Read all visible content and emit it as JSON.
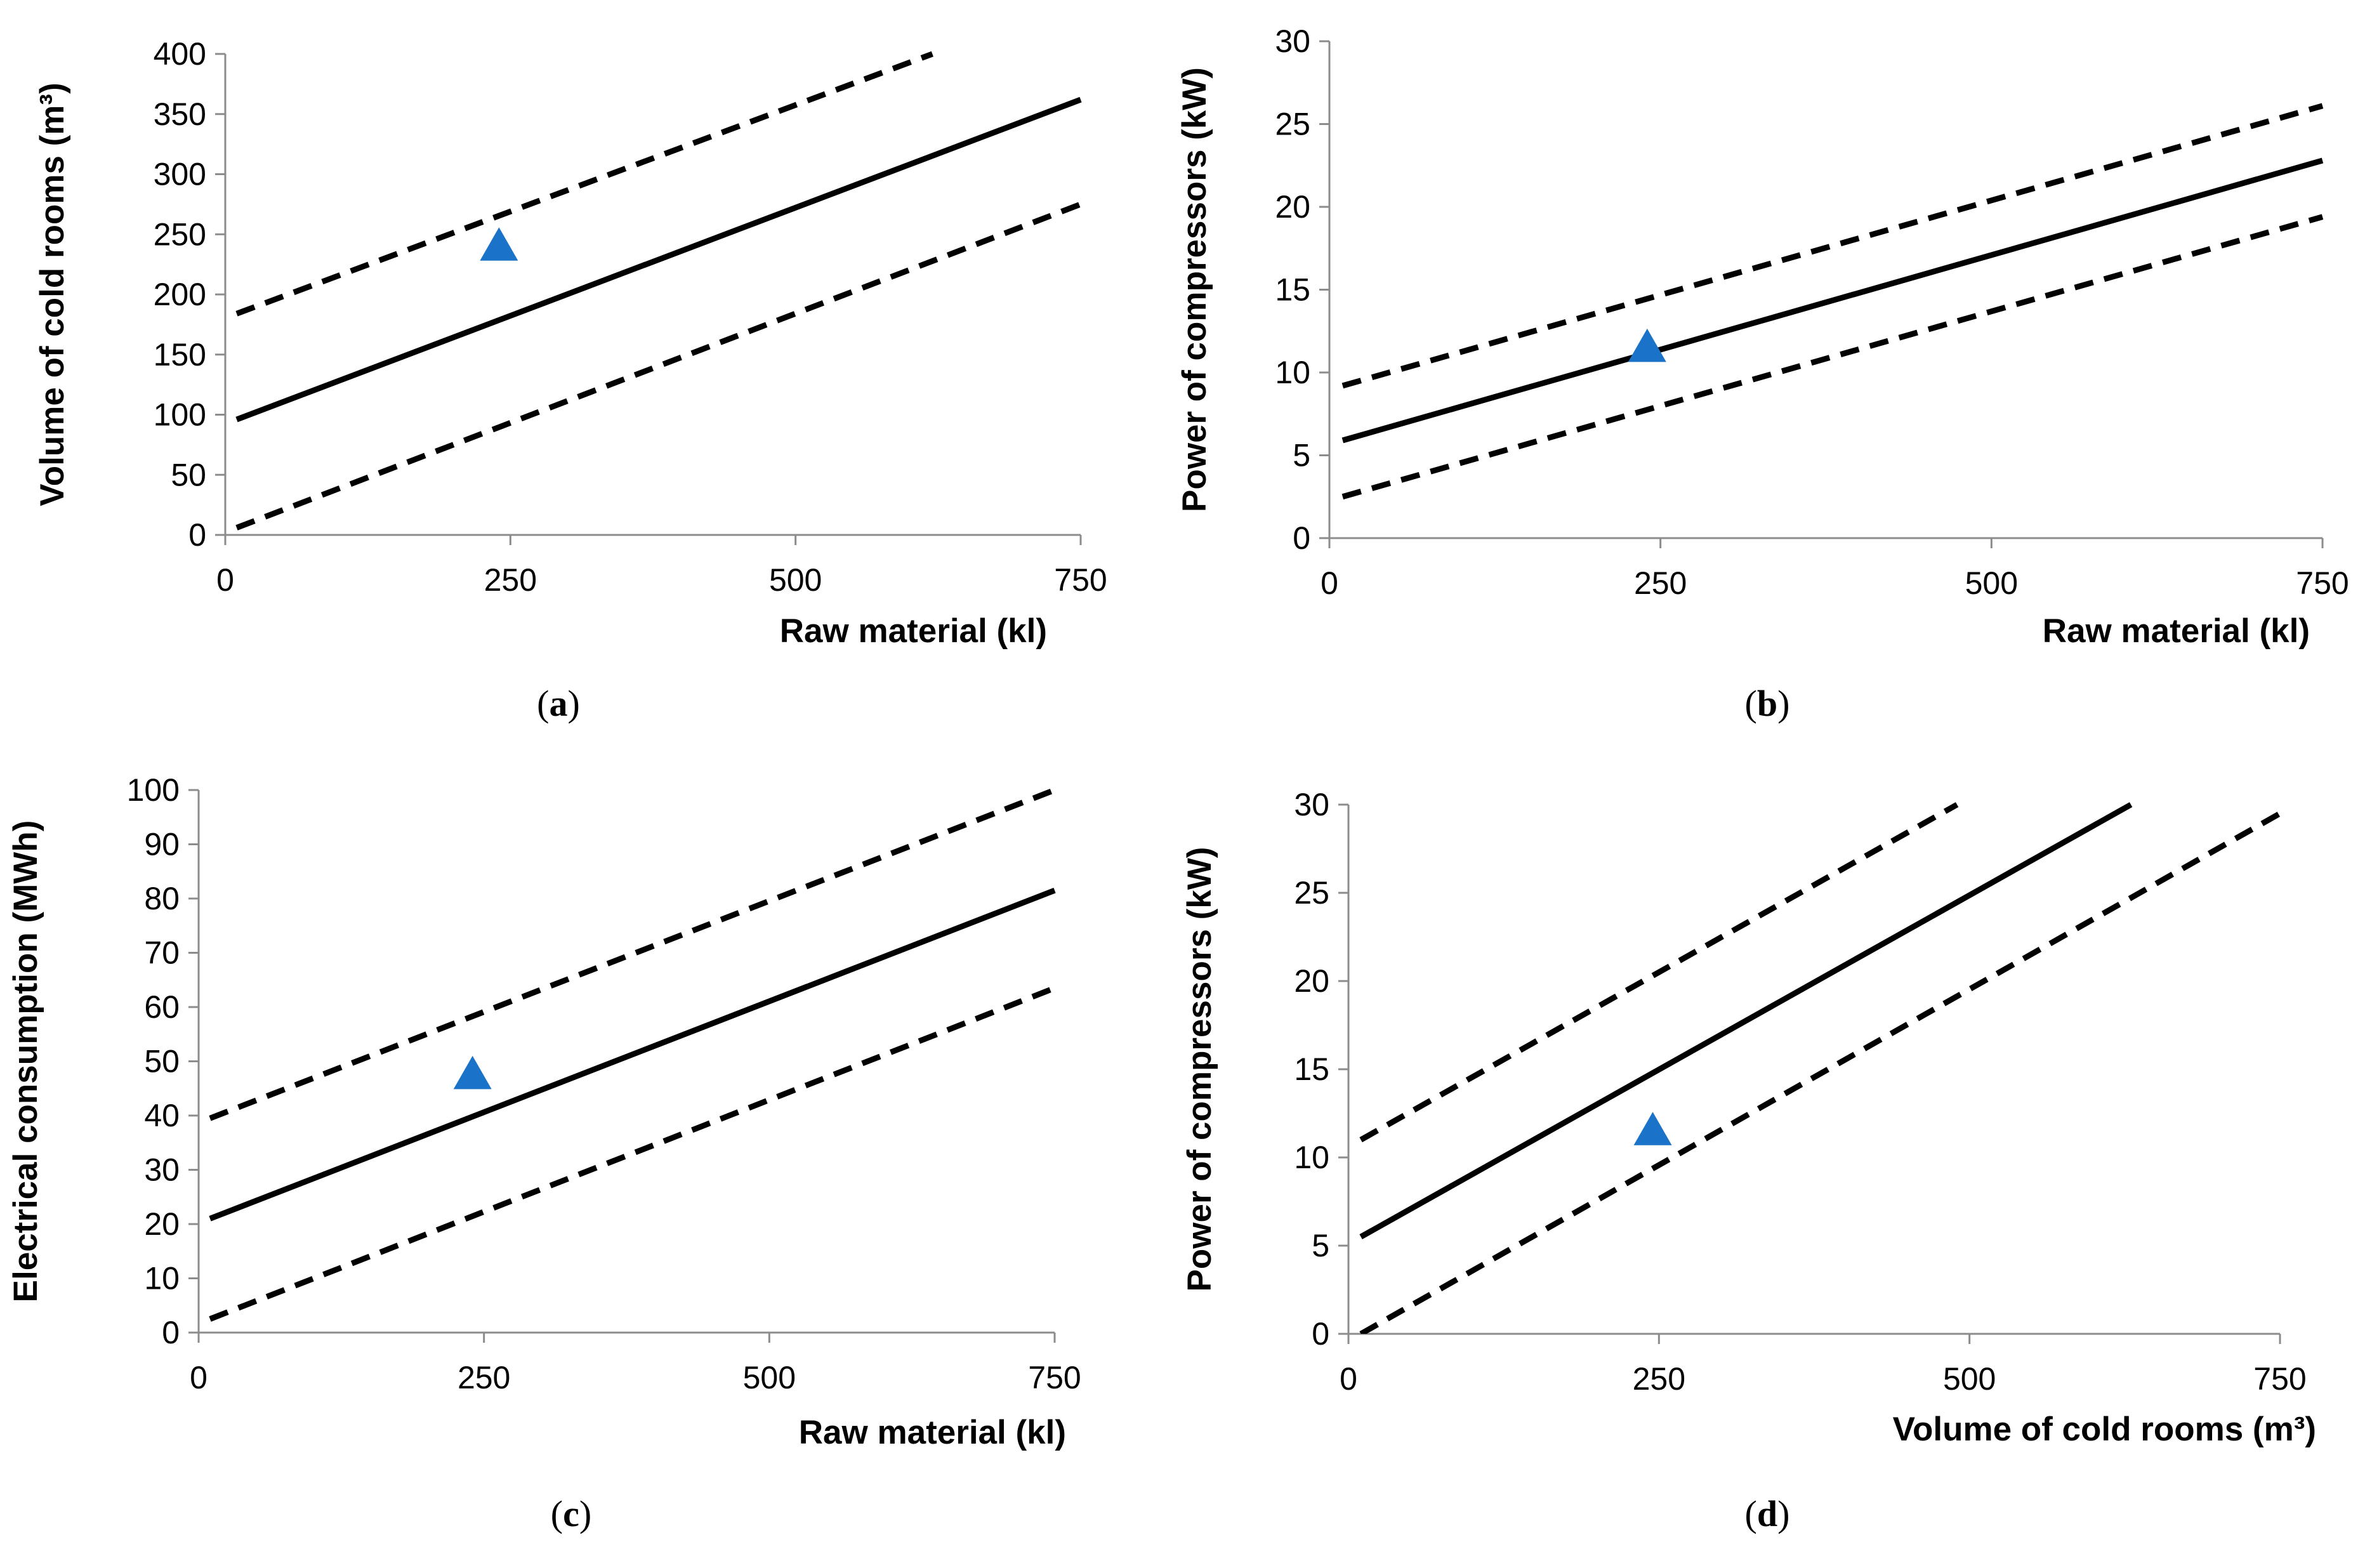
{
  "chart_data": [
    {
      "type": "line",
      "panel_label": "a",
      "caption": "(a)",
      "xlabel": "Raw material (kl)",
      "ylabel": "Volume of cold rooms (m³)",
      "xlim": [
        0,
        750
      ],
      "ylim": [
        0,
        400
      ],
      "x_ticks": [
        0,
        250,
        500,
        750
      ],
      "y_ticks": [
        0,
        50,
        100,
        150,
        200,
        250,
        300,
        350,
        400
      ],
      "series": [
        {
          "name": "regression",
          "style": "solid",
          "x": [
            10,
            750
          ],
          "y": [
            96,
            362
          ]
        },
        {
          "name": "upper bound",
          "style": "dashed",
          "x": [
            10,
            620
          ],
          "y": [
            184,
            400
          ]
        },
        {
          "name": "lower bound",
          "style": "dashed",
          "x": [
            10,
            750
          ],
          "y": [
            6,
            275
          ]
        }
      ],
      "marker": {
        "x": 240,
        "y": 240,
        "shape": "triangle",
        "color": "#1a73c8"
      }
    },
    {
      "type": "line",
      "panel_label": "b",
      "caption": "(b)",
      "xlabel": "Raw material (kl)",
      "ylabel": "Power of compressors (kW)",
      "xlim": [
        0,
        750
      ],
      "ylim": [
        0,
        30
      ],
      "x_ticks": [
        0,
        250,
        500,
        750
      ],
      "y_ticks": [
        0,
        5,
        10,
        15,
        20,
        25,
        30
      ],
      "series": [
        {
          "name": "regression",
          "style": "solid",
          "x": [
            10,
            750
          ],
          "y": [
            5.9,
            22.8
          ]
        },
        {
          "name": "upper bound",
          "style": "dashed",
          "x": [
            10,
            750
          ],
          "y": [
            9.2,
            26.1
          ]
        },
        {
          "name": "lower bound",
          "style": "dashed",
          "x": [
            10,
            750
          ],
          "y": [
            2.5,
            19.4
          ]
        }
      ],
      "marker": {
        "x": 240,
        "y": 11.5,
        "shape": "triangle",
        "color": "#1a73c8"
      }
    },
    {
      "type": "line",
      "panel_label": "c",
      "caption": "(c)",
      "xlabel": "Raw material (kl)",
      "ylabel": "Electrical consumption (MWh)",
      "xlim": [
        0,
        750
      ],
      "ylim": [
        0,
        100
      ],
      "x_ticks": [
        0,
        250,
        500,
        750
      ],
      "y_ticks": [
        0,
        10,
        20,
        30,
        40,
        50,
        60,
        70,
        80,
        90,
        100
      ],
      "series": [
        {
          "name": "regression",
          "style": "solid",
          "x": [
            10,
            750
          ],
          "y": [
            21,
            81.5
          ]
        },
        {
          "name": "upper bound",
          "style": "dashed",
          "x": [
            10,
            750
          ],
          "y": [
            39.5,
            100
          ]
        },
        {
          "name": "lower bound",
          "style": "dashed",
          "x": [
            10,
            750
          ],
          "y": [
            2.5,
            63.5
          ]
        }
      ],
      "marker": {
        "x": 240,
        "y": 47.5,
        "shape": "triangle",
        "color": "#1a73c8"
      }
    },
    {
      "type": "line",
      "panel_label": "d",
      "caption": "(d)",
      "xlabel": "Volume of cold rooms (m³)",
      "ylabel": "Power of compressors (kW)",
      "xlim": [
        0,
        750
      ],
      "ylim": [
        0,
        30
      ],
      "x_ticks": [
        0,
        250,
        500,
        750
      ],
      "y_ticks": [
        0,
        5,
        10,
        15,
        20,
        25,
        30
      ],
      "series": [
        {
          "name": "regression",
          "style": "solid",
          "x": [
            10,
            630
          ],
          "y": [
            5.5,
            30
          ]
        },
        {
          "name": "upper bound",
          "style": "dashed",
          "x": [
            10,
            490
          ],
          "y": [
            11,
            30
          ]
        },
        {
          "name": "lower bound",
          "style": "dashed",
          "x": [
            10,
            750
          ],
          "y": [
            0,
            29.5
          ]
        }
      ],
      "marker": {
        "x": 245,
        "y": 11.5,
        "shape": "triangle",
        "color": "#1a73c8"
      }
    }
  ]
}
